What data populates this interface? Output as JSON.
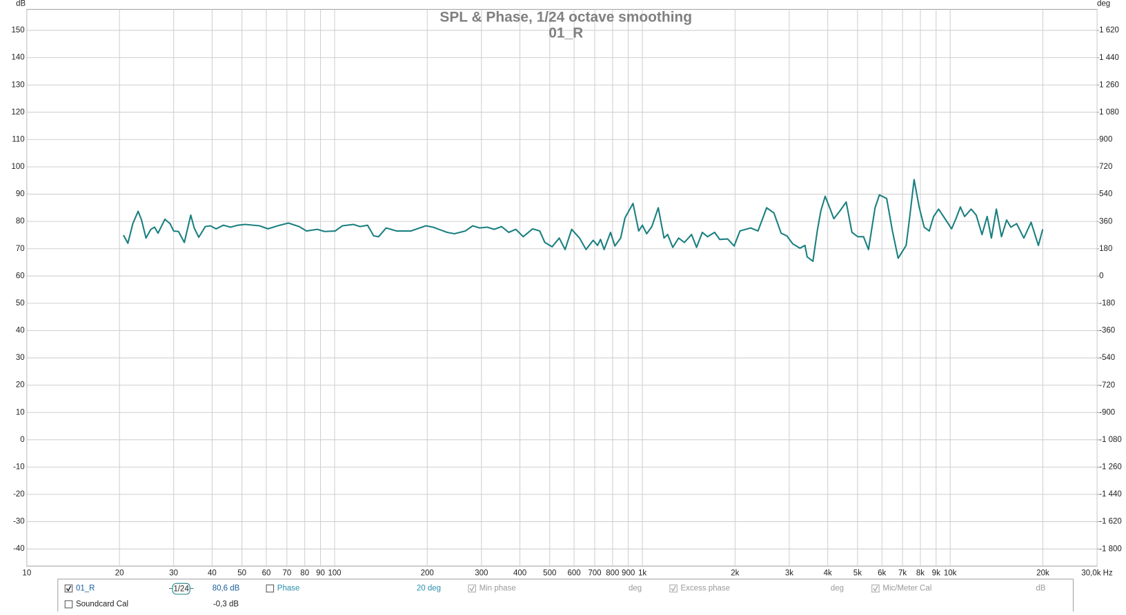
{
  "chart_data": {
    "type": "line",
    "title": "SPL & Phase, 1/24 octave smoothing",
    "subtitle": "01_R",
    "y_unit": "dB",
    "y2_unit": "deg",
    "xscale": "log",
    "grid": true,
    "xlim": [
      10,
      30000
    ],
    "ylim": [
      -46.3,
      157.7
    ],
    "y2lim": [
      -1913,
      1759
    ],
    "xticks": [
      10,
      20,
      30,
      40,
      50,
      60,
      70,
      80,
      90,
      100,
      200,
      300,
      400,
      500,
      600,
      700,
      800,
      900,
      {
        "value": 1000,
        "label": "1k"
      },
      {
        "value": 2000,
        "label": "2k"
      },
      {
        "value": 3000,
        "label": "3k"
      },
      {
        "value": 4000,
        "label": "4k"
      },
      {
        "value": 5000,
        "label": "5k"
      },
      {
        "value": 6000,
        "label": "6k"
      },
      {
        "value": 7000,
        "label": "7k"
      },
      {
        "value": 8000,
        "label": "8k"
      },
      {
        "value": 9000,
        "label": "9k"
      },
      {
        "value": 10000,
        "label": "10k"
      },
      {
        "value": 20000,
        "label": "20k"
      },
      {
        "value": 30000,
        "label": "30,0k Hz"
      }
    ],
    "yticks": [
      -40,
      -30,
      -20,
      -10,
      0,
      10,
      20,
      30,
      40,
      50,
      60,
      70,
      80,
      90,
      100,
      110,
      120,
      130,
      140,
      150
    ],
    "y2ticks": [
      {
        "value": -1800,
        "label": "-1 800"
      },
      {
        "value": -1620,
        "label": "-1 620"
      },
      {
        "value": -1440,
        "label": "-1 440"
      },
      {
        "value": -1260,
        "label": "-1 260"
      },
      {
        "value": -1080,
        "label": "-1 080"
      },
      -900,
      -720,
      -540,
      -360,
      -180,
      0,
      180,
      360,
      540,
      720,
      900,
      {
        "value": 1080,
        "label": "1 080"
      },
      {
        "value": 1260,
        "label": "1 260"
      },
      {
        "value": 1440,
        "label": "1 440"
      },
      {
        "value": 1620,
        "label": "1 620"
      }
    ],
    "x": [
      20.6,
      21.3,
      22.1,
      23.0,
      23.6,
      24.4,
      25.3,
      26.0,
      26.7,
      28.1,
      29.2,
      30.0,
      31.1,
      32.5,
      34.1,
      35.0,
      36.2,
      38.0,
      39.5,
      41.2,
      43.5,
      45.9,
      48.5,
      51.2,
      57.0,
      60.8,
      65.3,
      70.8,
      76.7,
      81.0,
      87.8,
      92.7,
      100.5,
      106,
      115,
      121,
      128,
      134,
      139,
      147,
      159,
      177,
      198,
      209,
      232,
      245,
      266,
      281,
      296,
      313,
      330,
      349,
      368,
      388,
      410,
      440,
      464,
      482,
      509,
      537,
      561,
      589,
      625,
      656,
      692,
      715,
      731,
      751,
      788,
      814,
      850,
      878,
      932,
      973,
      1000,
      1033,
      1073,
      1126,
      1176,
      1208,
      1255,
      1311,
      1369,
      1444,
      1500,
      1566,
      1627,
      1717,
      1783,
      1892,
      1987,
      2075,
      2167,
      2250,
      2375,
      2534,
      2675,
      2823,
      2948,
      3078,
      3250,
      3375,
      3430,
      3581,
      3700,
      3801,
      3926,
      4077,
      4189,
      4374,
      4593,
      4796,
      5007,
      5229,
      5428,
      5700,
      5888,
      6217,
      6492,
      6776,
      7193,
      7390,
      7634,
      7929,
      8234,
      8551,
      8831,
      9172,
      9681,
      10110,
      10440,
      10790,
      11140,
      11700,
      12150,
      12690,
      13180,
      13610,
      14130,
      14680,
      15250,
      15750,
      16440,
      17350,
      18320,
      19340,
      19980
    ],
    "series": [
      {
        "name": "01_R",
        "color": "#1a7f80",
        "values": [
          75.0,
          72.0,
          79.2,
          83.7,
          80.5,
          73.9,
          77.1,
          77.9,
          75.7,
          80.8,
          79.2,
          76.5,
          76.3,
          72.3,
          82.3,
          77.6,
          74.2,
          78.1,
          78.4,
          77.3,
          78.6,
          77.9,
          78.6,
          78.9,
          78.4,
          77.3,
          78.4,
          79.4,
          78.1,
          76.5,
          77.1,
          76.3,
          76.5,
          78.4,
          78.9,
          78.1,
          78.6,
          74.7,
          74.4,
          77.6,
          76.5,
          76.5,
          78.4,
          77.9,
          76.0,
          75.5,
          76.5,
          78.4,
          77.6,
          77.9,
          77.1,
          78.1,
          76.0,
          77.1,
          74.4,
          77.3,
          76.5,
          72.3,
          70.7,
          73.9,
          69.7,
          77.1,
          73.9,
          69.7,
          73.1,
          71.2,
          73.4,
          69.7,
          76.0,
          71.0,
          73.9,
          81.3,
          86.6,
          76.5,
          78.6,
          75.5,
          78.1,
          85.0,
          73.9,
          75.2,
          70.5,
          73.9,
          72.3,
          75.2,
          70.5,
          76.0,
          74.4,
          76.0,
          73.4,
          73.6,
          71.0,
          76.5,
          77.1,
          77.6,
          76.5,
          85.0,
          83.1,
          75.7,
          74.7,
          71.8,
          70.2,
          71.2,
          67.0,
          65.4,
          76.5,
          83.9,
          89.2,
          84.5,
          81.0,
          83.7,
          87.1,
          76.0,
          74.4,
          74.4,
          69.7,
          85.0,
          89.7,
          88.4,
          76.5,
          66.5,
          71.2,
          81.8,
          95.3,
          85.3,
          77.9,
          76.5,
          81.8,
          84.5,
          80.5,
          77.3,
          81.0,
          85.3,
          81.8,
          84.5,
          82.3,
          75.2,
          81.8,
          73.9,
          84.5,
          74.4,
          80.5,
          77.9,
          79.2,
          73.9,
          79.7,
          71.2,
          77.1
        ]
      }
    ]
  },
  "panel": {
    "items": [
      {
        "label": "01_R",
        "checked": true,
        "enabled": true
      },
      {
        "label": "Soundcard Cal",
        "checked": false,
        "enabled": true
      },
      {
        "label": "Phase",
        "checked": false,
        "enabled": true
      },
      {
        "label": "Min phase",
        "checked": true,
        "enabled": false
      },
      {
        "label": "Excess phase",
        "checked": true,
        "enabled": false
      },
      {
        "label": "Mic/Meter Cal",
        "checked": true,
        "enabled": false
      }
    ],
    "values": [
      "1/24",
      "80,6 dB",
      "-0,3 dB",
      "20 deg",
      "deg",
      "deg",
      "dB"
    ]
  }
}
